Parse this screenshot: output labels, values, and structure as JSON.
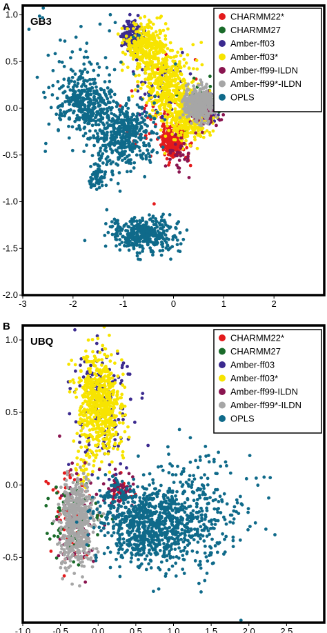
{
  "colors": {
    "CHARMM22*": "#e31a1c",
    "CHARMM27": "#1a6b2a",
    "Amber-ff03": "#3b2a8f",
    "Amber-ff03*": "#f7e400",
    "Amber-ff99-ILDN": "#8a1550",
    "Amber-ff99*-ILDN": "#a6a6a6",
    "OPLS": "#0f6a8a"
  },
  "chart_data": [
    {
      "type": "scatter",
      "panel": "A",
      "title": "GB3",
      "xlabel": "",
      "ylabel": "",
      "xlim": [
        -3.0,
        3.0
      ],
      "ylim": [
        -2.0,
        1.1
      ],
      "xticks": [
        "-3",
        "-2",
        "-1",
        "0",
        "1",
        "2"
      ],
      "yticks": [
        "1.0",
        "0.5",
        "0.0",
        "-0.5",
        "-1.0",
        "-1.5",
        "-2.0"
      ],
      "xtick_values": [
        -3,
        -2,
        -1,
        0,
        1,
        2
      ],
      "ytick_values": [
        1.0,
        0.5,
        0.0,
        -0.5,
        -1.0,
        -1.5,
        -2.0
      ],
      "legend_position": "top-right",
      "series": [
        {
          "name": "CHARMM22*",
          "clusters": [
            {
              "cx": 0.0,
              "cy": -0.35,
              "sx": 0.12,
              "sy": 0.09,
              "n": 240
            },
            {
              "cx": -0.3,
              "cy": -0.1,
              "sx": 0.35,
              "sy": 0.3,
              "n": 50
            }
          ]
        },
        {
          "name": "CHARMM27",
          "clusters": [
            {
              "cx": 0.5,
              "cy": 0.05,
              "sx": 0.22,
              "sy": 0.1,
              "n": 50
            }
          ]
        },
        {
          "name": "Amber-ff03",
          "clusters": [
            {
              "cx": -0.82,
              "cy": 0.78,
              "sx": 0.1,
              "sy": 0.08,
              "n": 150
            },
            {
              "cx": 0.7,
              "cy": 0.0,
              "sx": 0.1,
              "sy": 0.08,
              "n": 50
            },
            {
              "cx": -0.3,
              "cy": 0.3,
              "sx": 0.3,
              "sy": 0.25,
              "n": 60
            }
          ]
        },
        {
          "name": "Amber-ff03*",
          "clusters": [
            {
              "cx": -0.55,
              "cy": 0.65,
              "sx": 0.2,
              "sy": 0.13,
              "n": 320
            },
            {
              "cx": -0.1,
              "cy": 0.25,
              "sx": 0.22,
              "sy": 0.2,
              "n": 380
            },
            {
              "cx": 0.35,
              "cy": -0.1,
              "sx": 0.2,
              "sy": 0.13,
              "n": 320
            }
          ]
        },
        {
          "name": "Amber-ff99-ILDN",
          "clusters": [
            {
              "cx": 0.65,
              "cy": 0.0,
              "sx": 0.16,
              "sy": 0.1,
              "n": 80
            },
            {
              "cx": 0.1,
              "cy": -0.5,
              "sx": 0.12,
              "sy": 0.1,
              "n": 30
            }
          ]
        },
        {
          "name": "Amber-ff99*-ILDN",
          "clusters": [
            {
              "cx": 0.52,
              "cy": 0.05,
              "sx": 0.15,
              "sy": 0.085,
              "n": 420
            }
          ]
        },
        {
          "name": "OPLS",
          "clusters": [
            {
              "cx": -1.75,
              "cy": 0.05,
              "sx": 0.25,
              "sy": 0.15,
              "n": 320
            },
            {
              "cx": -1.0,
              "cy": -0.3,
              "sx": 0.3,
              "sy": 0.18,
              "n": 420
            },
            {
              "cx": -1.5,
              "cy": -0.75,
              "sx": 0.1,
              "sy": 0.08,
              "n": 60
            },
            {
              "cx": -0.6,
              "cy": -1.35,
              "sx": 0.32,
              "sy": 0.09,
              "n": 380
            },
            {
              "cx": -1.8,
              "cy": 0.3,
              "sx": 0.6,
              "sy": 0.4,
              "n": 100
            }
          ]
        }
      ]
    },
    {
      "type": "scatter",
      "panel": "B",
      "title": "UBQ",
      "xlabel": "",
      "ylabel": "",
      "xlim": [
        -1.0,
        3.0
      ],
      "ylim": [
        -0.95,
        1.1
      ],
      "xticks": [
        "-1.0",
        "-0.5",
        "0.0",
        "0.5",
        "1.0",
        "1.5",
        "2.0",
        "2.5"
      ],
      "yticks": [
        "1.0",
        "0.5",
        "0.0",
        "-0.5"
      ],
      "xtick_values": [
        -1.0,
        -0.5,
        0.0,
        0.5,
        1.0,
        1.5,
        2.0,
        2.5
      ],
      "ytick_values": [
        1.0,
        0.5,
        0.0,
        -0.5
      ],
      "legend_position": "top-right",
      "series": [
        {
          "name": "CHARMM22*",
          "clusters": [
            {
              "cx": -0.35,
              "cy": -0.2,
              "sx": 0.14,
              "sy": 0.16,
              "n": 70
            },
            {
              "cx": 0.3,
              "cy": -0.02,
              "sx": 0.08,
              "sy": 0.06,
              "n": 20
            }
          ]
        },
        {
          "name": "CHARMM27",
          "clusters": [
            {
              "cx": -0.35,
              "cy": -0.25,
              "sx": 0.16,
              "sy": 0.15,
              "n": 70
            }
          ]
        },
        {
          "name": "Amber-ff03",
          "clusters": [
            {
              "cx": 0.05,
              "cy": 0.55,
              "sx": 0.22,
              "sy": 0.22,
              "n": 160
            }
          ]
        },
        {
          "name": "Amber-ff03*",
          "clusters": [
            {
              "cx": 0.02,
              "cy": 0.55,
              "sx": 0.15,
              "sy": 0.17,
              "n": 620
            },
            {
              "cx": -0.2,
              "cy": 0.1,
              "sx": 0.05,
              "sy": 0.06,
              "n": 30
            }
          ]
        },
        {
          "name": "Amber-ff99-ILDN",
          "clusters": [
            {
              "cx": -0.3,
              "cy": -0.2,
              "sx": 0.18,
              "sy": 0.18,
              "n": 60
            },
            {
              "cx": 0.3,
              "cy": -0.05,
              "sx": 0.1,
              "sy": 0.06,
              "n": 50
            }
          ]
        },
        {
          "name": "Amber-ff99*-ILDN",
          "clusters": [
            {
              "cx": -0.28,
              "cy": -0.25,
              "sx": 0.11,
              "sy": 0.15,
              "n": 550
            }
          ]
        },
        {
          "name": "OPLS",
          "clusters": [
            {
              "cx": 0.7,
              "cy": -0.3,
              "sx": 0.3,
              "sy": 0.12,
              "n": 600
            },
            {
              "cx": 1.25,
              "cy": -0.2,
              "sx": 0.35,
              "sy": 0.2,
              "n": 350
            },
            {
              "cx": 0.3,
              "cy": -0.15,
              "sx": 0.2,
              "sy": 0.1,
              "n": 150
            }
          ]
        }
      ]
    }
  ]
}
